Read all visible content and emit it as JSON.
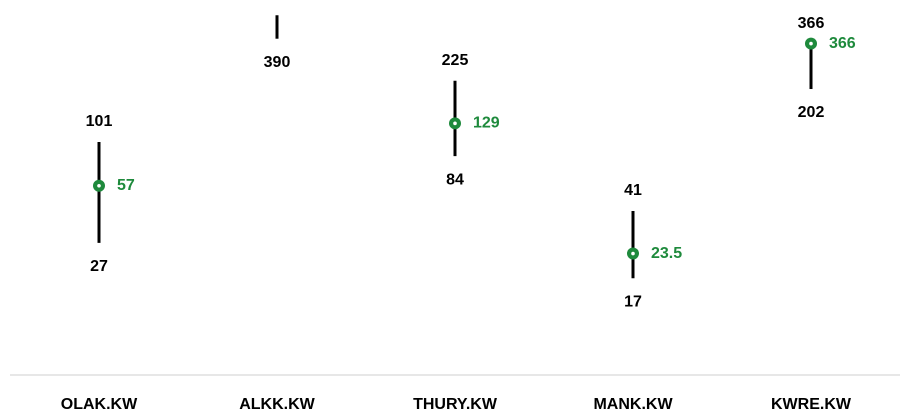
{
  "chart_data": {
    "type": "range",
    "categories": [
      "OLAK.KW",
      "ALKK.KW",
      "THURY.KW",
      "MANK.KW",
      "KWRE.KW"
    ],
    "high": [
      101,
      530,
      225,
      41,
      366
    ],
    "high_labels": [
      "101",
      null,
      "225",
      "41",
      "366"
    ],
    "low": [
      27,
      390,
      84,
      17,
      202
    ],
    "last": [
      57,
      null,
      129,
      23.5,
      366
    ],
    "range_color": "#000000",
    "last_color": "#1e8a3c",
    "ylim": [
      4.8,
      647
    ],
    "log_scale": true
  }
}
